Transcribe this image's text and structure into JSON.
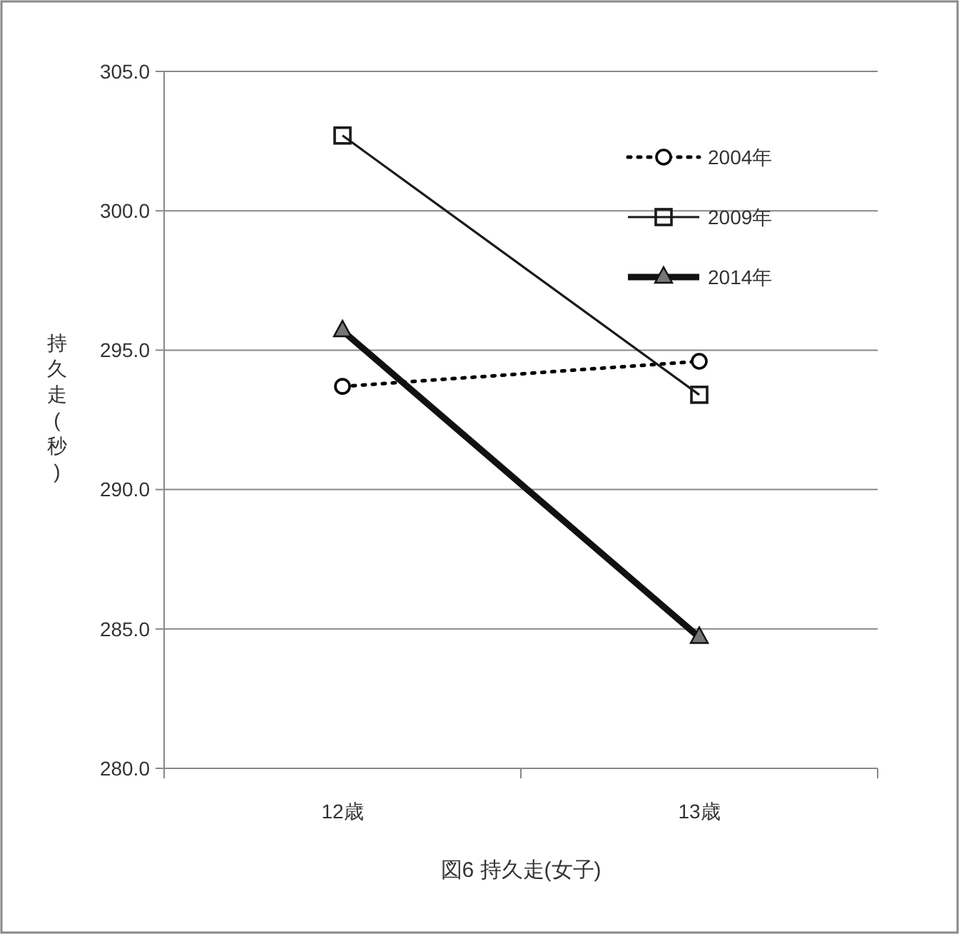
{
  "chart_data": {
    "type": "line",
    "title": "図6  持久走(女子)",
    "ylabel": "持久走(秒)",
    "categories": [
      "12歳",
      "13歳"
    ],
    "series": [
      {
        "name": "2004年",
        "color": "#000000",
        "values": [
          293.7,
          294.6
        ],
        "marker": "circle",
        "line_style": "dotted"
      },
      {
        "name": "2009年",
        "color": "#1a1a1a",
        "values": [
          302.7,
          293.4
        ],
        "marker": "square",
        "line_style": "solid"
      },
      {
        "name": "2014年",
        "color": "#111111",
        "values": [
          295.7,
          284.7
        ],
        "marker": "triangle",
        "line_style": "solid"
      }
    ],
    "ylim": [
      280,
      305
    ],
    "yticks": [
      {
        "value": 280,
        "label": "280.0"
      },
      {
        "value": 285,
        "label": "285.0"
      },
      {
        "value": 290,
        "label": "290.0"
      },
      {
        "value": 295,
        "label": "295.0"
      },
      {
        "value": 300,
        "label": "300.0"
      },
      {
        "value": 305,
        "label": "305.0"
      }
    ],
    "grid": "y",
    "legend": "top right"
  }
}
